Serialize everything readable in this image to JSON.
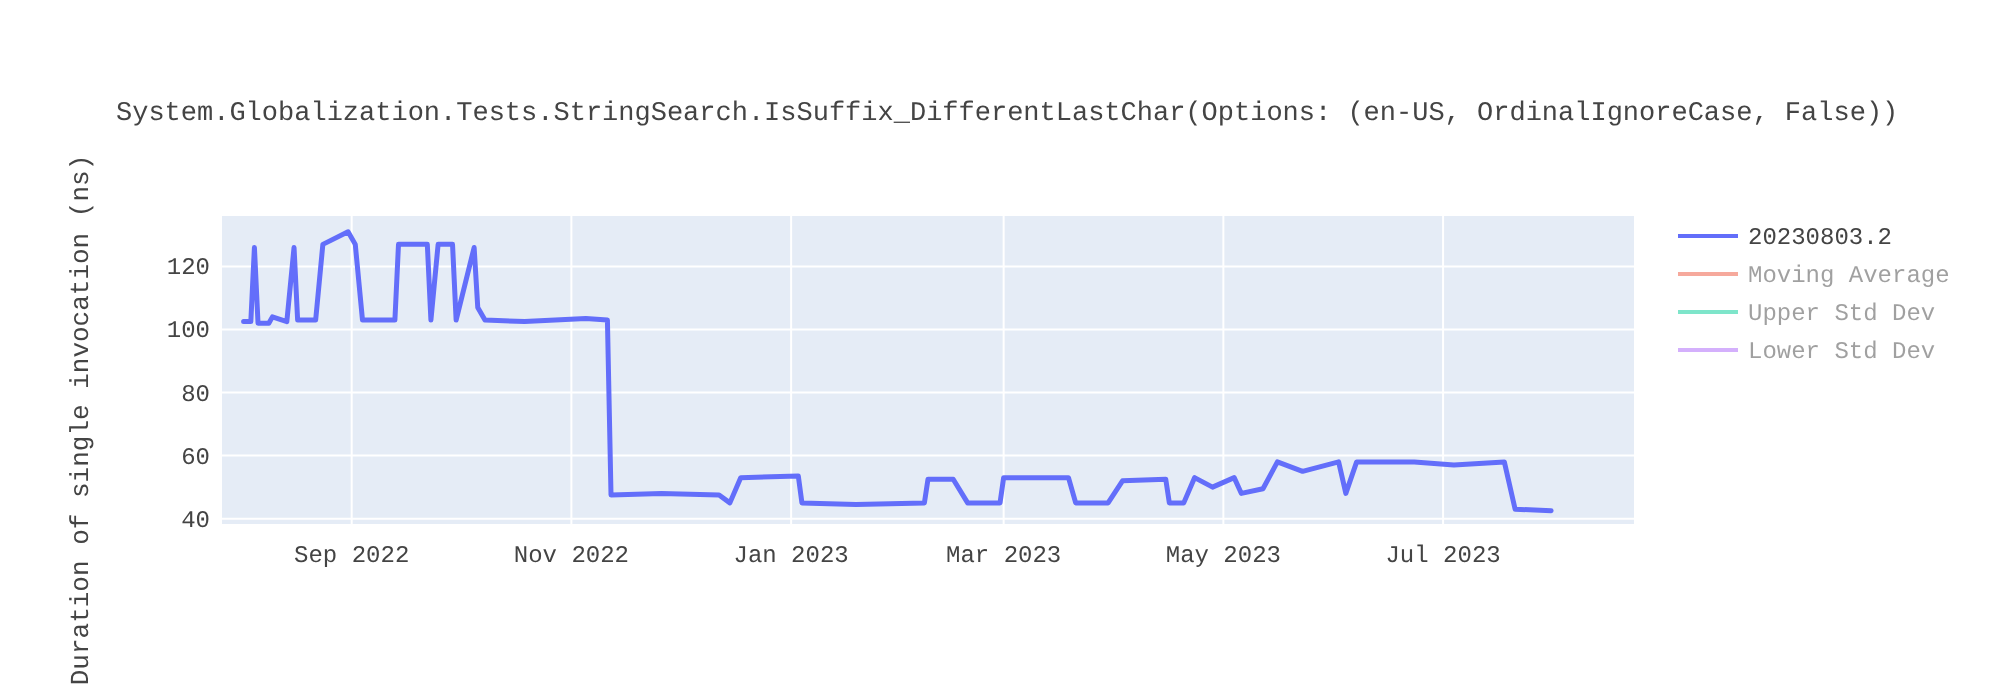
{
  "chart_data": {
    "type": "line",
    "title": "System.Globalization.Tests.StringSearch.IsSuffix_DifferentLastChar(Options: (en-US, OrdinalIgnoreCase, False))",
    "ylabel": "Duration of single invocation (ns)",
    "xlim": [
      "2022-07-27",
      "2023-08-23"
    ],
    "ylim": [
      38.3,
      136
    ],
    "xticks": [
      {
        "value": "2022-09-01",
        "label": "Sep 2022"
      },
      {
        "value": "2022-11-01",
        "label": "Nov 2022"
      },
      {
        "value": "2023-01-01",
        "label": "Jan 2023"
      },
      {
        "value": "2023-03-01",
        "label": "Mar 2023"
      },
      {
        "value": "2023-05-01",
        "label": "May 2023"
      },
      {
        "value": "2023-07-01",
        "label": "Jul 2023"
      }
    ],
    "yticks": [
      40,
      60,
      80,
      100,
      120
    ],
    "grid": true,
    "legend": "top right",
    "series": [
      {
        "name": "20230803.2",
        "color": "#636efa",
        "x": [
          "2022-08-02",
          "2022-08-04",
          "2022-08-05",
          "2022-08-06",
          "2022-08-09",
          "2022-08-10",
          "2022-08-14",
          "2022-08-16",
          "2022-08-17",
          "2022-08-22",
          "2022-08-24",
          "2022-08-31",
          "2022-09-02",
          "2022-09-04",
          "2022-09-13",
          "2022-09-14",
          "2022-09-20",
          "2022-09-22",
          "2022-09-23",
          "2022-09-25",
          "2022-09-29",
          "2022-09-30",
          "2022-10-05",
          "2022-10-06",
          "2022-10-08",
          "2022-10-19",
          "2022-11-05",
          "2022-11-11",
          "2022-11-12",
          "2022-11-26",
          "2022-12-12",
          "2022-12-15",
          "2022-12-18",
          "2023-01-03",
          "2023-01-04",
          "2023-01-19",
          "2023-02-07",
          "2023-02-08",
          "2023-02-15",
          "2023-02-19",
          "2023-02-28",
          "2023-03-01",
          "2023-03-19",
          "2023-03-21",
          "2023-03-30",
          "2023-04-03",
          "2023-04-15",
          "2023-04-16",
          "2023-04-20",
          "2023-04-23",
          "2023-04-28",
          "2023-05-04",
          "2023-05-06",
          "2023-05-12",
          "2023-05-16",
          "2023-05-23",
          "2023-06-02",
          "2023-06-04",
          "2023-06-07",
          "2023-06-23",
          "2023-07-04",
          "2023-07-18",
          "2023-07-21",
          "2023-07-31"
        ],
        "values": [
          102.5,
          102.5,
          126,
          102,
          102,
          104,
          102.5,
          126,
          103,
          103,
          127,
          131,
          127,
          103,
          103,
          127,
          127,
          127,
          103,
          127,
          127,
          103,
          126,
          107,
          103,
          102.5,
          103.5,
          103,
          47.5,
          48,
          47.5,
          45,
          53,
          53.5,
          45,
          44.5,
          45,
          52.5,
          52.5,
          45,
          45,
          53,
          53,
          45,
          45,
          52,
          52.5,
          45,
          45,
          53,
          50,
          53,
          48,
          49.5,
          58,
          55,
          58,
          48,
          58,
          58,
          57,
          58,
          43,
          42.5
        ]
      },
      {
        "name": "Moving Average",
        "color": "#ef553b"
      },
      {
        "name": "Upper Std Dev",
        "color": "#00cc96"
      },
      {
        "name": "Lower Std Dev",
        "color": "#ab63fa"
      }
    ]
  }
}
